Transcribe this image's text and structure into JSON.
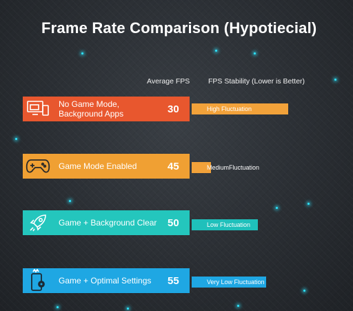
{
  "title": "Frame Rate Comparison (Hypotiecial)",
  "headers": {
    "fps": "Average FPS",
    "stability": "FPS Stability (Lower is Better)"
  },
  "chart_data": {
    "type": "bar",
    "title": "Frame Rate Comparison (Hypotiecial)",
    "categories": [
      "No Game Mode, Background Apps",
      "Game Mode Enabled",
      "Game + Background Clear",
      "Game + Optimal Settings"
    ],
    "series": [
      {
        "values": [
          30,
          45,
          50,
          55
        ]
      }
    ],
    "stability_labels": [
      "High Fluctuation",
      "Medium Fluctuation",
      "Low Fluctuation",
      "Very Low Fluctuation"
    ],
    "stability_relative": [
      1.0,
      0.18,
      0.64,
      0.82
    ],
    "colors": [
      "#e8572e",
      "#f0a033",
      "#24c6bd",
      "#1fa7e3"
    ],
    "icons": [
      "devices-icon",
      "gamepad-icon",
      "rocket-icon",
      "phone-settings-icon"
    ]
  },
  "rows": [
    {
      "label_line1": "No Game Mode,",
      "label_line2": "Background Apps",
      "fps": "30",
      "stability": "High Fluctuation"
    },
    {
      "label_line1": "Game Mode Enabled",
      "label_line2": "",
      "fps": "45",
      "stability_a": "Medium",
      "stability_b": " Fluctuation"
    },
    {
      "label_line1": "Game + Background Clear",
      "label_line2": "",
      "fps": "50",
      "stability": "Low Fluctuation"
    },
    {
      "label_line1": "Game + Optimal Settings",
      "label_line2": "",
      "fps": "55",
      "stability": "Very Low Fluctuation"
    }
  ]
}
